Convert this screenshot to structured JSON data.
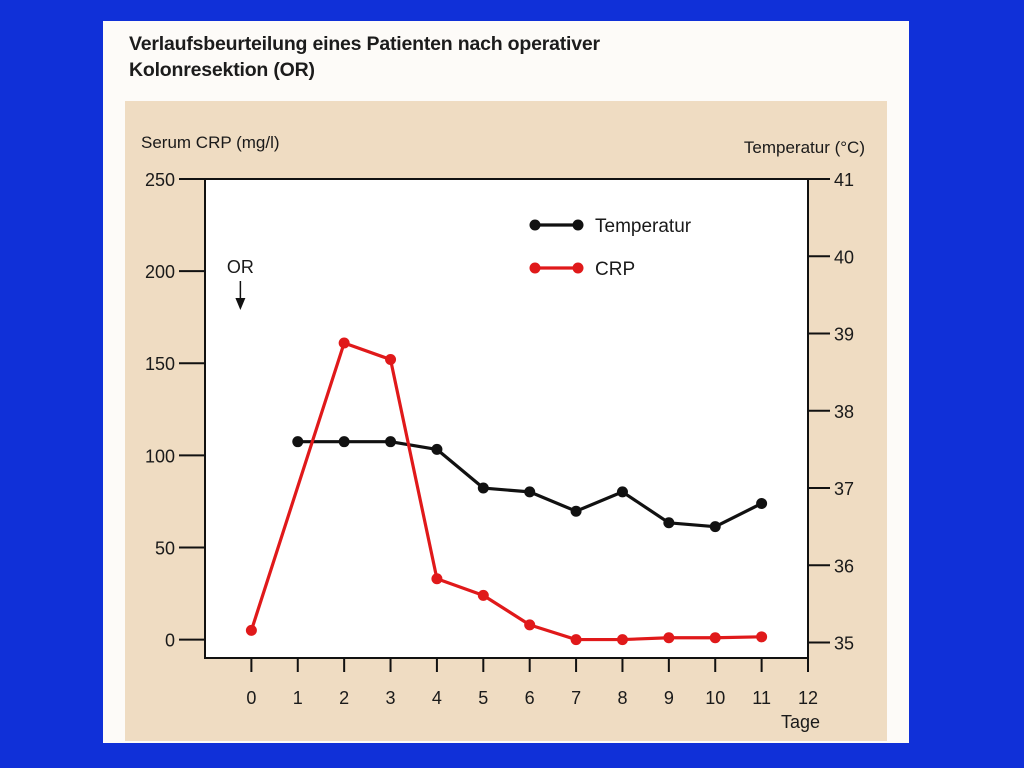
{
  "title_lines": [
    "Verlaufsbeurteilung eines Patienten nach operativer",
    "Kolonresektion (OR)"
  ],
  "chart_data": {
    "type": "line",
    "title": "Verlaufsbeurteilung eines Patienten nach operativer Kolonresektion (OR)",
    "xlabel": "Tage",
    "ylabel_left": "Serum CRP (mg/l)",
    "ylabel_right": "Temperatur (°C)",
    "x_ticks": [
      0,
      1,
      2,
      3,
      4,
      5,
      6,
      7,
      8,
      9,
      10,
      11,
      12
    ],
    "y_left_ticks": [
      0,
      50,
      100,
      150,
      200,
      250
    ],
    "y_right_ticks": [
      35,
      36,
      37,
      38,
      39,
      40,
      41
    ],
    "xlim": [
      -1,
      12
    ],
    "ylim_left": [
      -10,
      250
    ],
    "ylim_right": [
      34.8,
      41
    ],
    "grid": false,
    "legend_position": "top-right",
    "annotation": {
      "text": "OR",
      "x": 0
    },
    "series": [
      {
        "name": "Temperatur",
        "axis": "right",
        "color": "#111111",
        "x": [
          1,
          2,
          3,
          4,
          5,
          6,
          7,
          8,
          9,
          10,
          11
        ],
        "values": [
          37.6,
          37.6,
          37.6,
          37.5,
          37.0,
          36.95,
          36.7,
          36.95,
          36.55,
          36.5,
          36.8
        ]
      },
      {
        "name": "CRP",
        "axis": "left",
        "color": "#e0191a",
        "x": [
          0,
          2,
          3,
          4,
          5,
          6,
          7,
          8,
          9,
          10,
          11
        ],
        "values": [
          5,
          161,
          152,
          33,
          24,
          8,
          0,
          0,
          1,
          1,
          1.5
        ]
      }
    ]
  }
}
